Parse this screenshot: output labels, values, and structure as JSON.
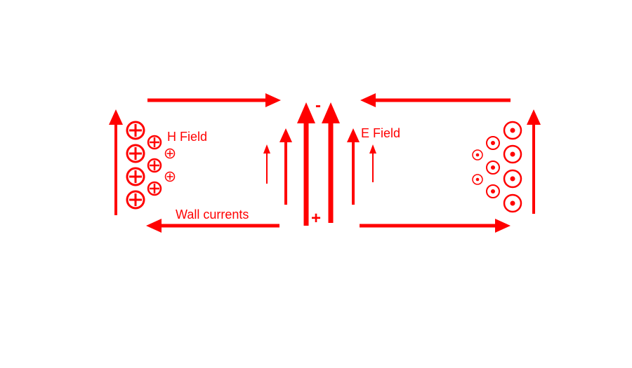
{
  "diagram": {
    "color": "#ff0000",
    "labels": {
      "h_field": "H Field",
      "e_field": "E Field",
      "wall_currents": "Wall currents",
      "minus_sign": "-",
      "plus_sign": "+"
    },
    "symbols": {
      "into_page": "circle-cross-icon",
      "out_of_page": "circle-dot-icon"
    }
  }
}
